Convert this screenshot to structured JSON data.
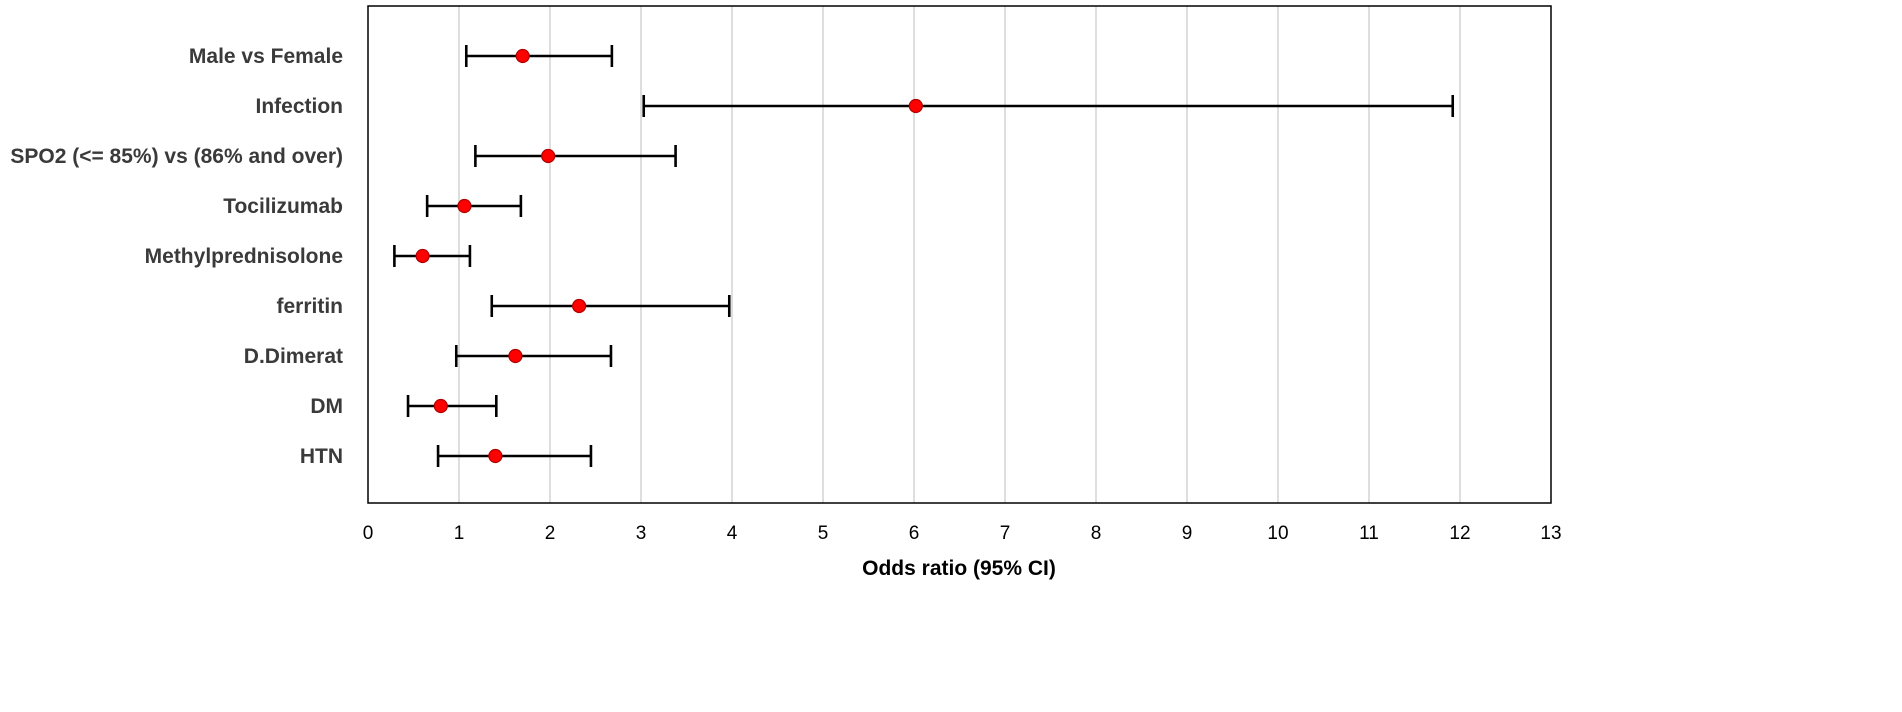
{
  "chart_data": {
    "type": "scatter",
    "subtype": "forest-plot",
    "title": "",
    "xlabel": "Odds ratio  (95% CI)",
    "ylabel": "",
    "xlim": [
      0,
      13
    ],
    "x_ticks": [
      0,
      1,
      2,
      3,
      4,
      5,
      6,
      7,
      8,
      9,
      10,
      11,
      12,
      13
    ],
    "grid": "vertical",
    "legend": "none",
    "colors": {
      "point": "#ff0000",
      "error_bar": "#000000",
      "grid": "#c8c8c8"
    },
    "rows": [
      {
        "label": "Male vs Female",
        "or": 1.7,
        "lower": 1.08,
        "upper": 2.68
      },
      {
        "label": "Infection",
        "or": 6.02,
        "lower": 3.03,
        "upper": 11.92
      },
      {
        "label": "SPO2 (<= 85%) vs (86% and over)",
        "or": 1.98,
        "lower": 1.18,
        "upper": 3.38
      },
      {
        "label": "Tocilizumab",
        "or": 1.06,
        "lower": 0.65,
        "upper": 1.68
      },
      {
        "label": "Methylprednisolone",
        "or": 0.6,
        "lower": 0.29,
        "upper": 1.12
      },
      {
        "label": "ferritin",
        "or": 2.32,
        "lower": 1.36,
        "upper": 3.97
      },
      {
        "label": "D.Dimerat",
        "or": 1.62,
        "lower": 0.97,
        "upper": 2.67
      },
      {
        "label": "DM",
        "or": 0.8,
        "lower": 0.44,
        "upper": 1.41
      },
      {
        "label": "HTN",
        "or": 1.4,
        "lower": 0.77,
        "upper": 2.45
      }
    ]
  }
}
